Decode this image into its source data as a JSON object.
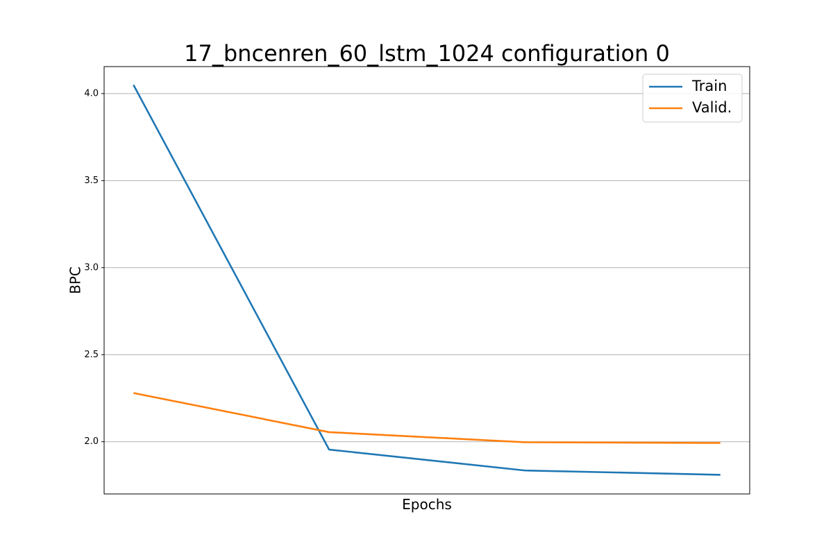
{
  "chart_data": {
    "type": "line",
    "title": "17_bncenren_60_lstm_1024 configuration 0",
    "xlabel": "Epochs",
    "ylabel": "BPC",
    "x": [
      1,
      2,
      3,
      4
    ],
    "xlim": [
      0.85,
      4.15
    ],
    "ylim": [
      1.7,
      4.155
    ],
    "yticks": [
      2.0,
      2.5,
      3.0,
      3.5,
      4.0
    ],
    "ytick_labels": [
      "2.0",
      "2.5",
      "3.0",
      "3.5",
      "4.0"
    ],
    "xticks_shown": false,
    "grid": "y",
    "legend_position": "upper right",
    "series": [
      {
        "name": "Train",
        "color": "#1f77b4",
        "values": [
          4.05,
          1.955,
          1.835,
          1.81
        ]
      },
      {
        "name": "Valid.",
        "color": "#ff7f0e",
        "values": [
          2.28,
          2.055,
          1.997,
          1.993
        ]
      }
    ]
  }
}
